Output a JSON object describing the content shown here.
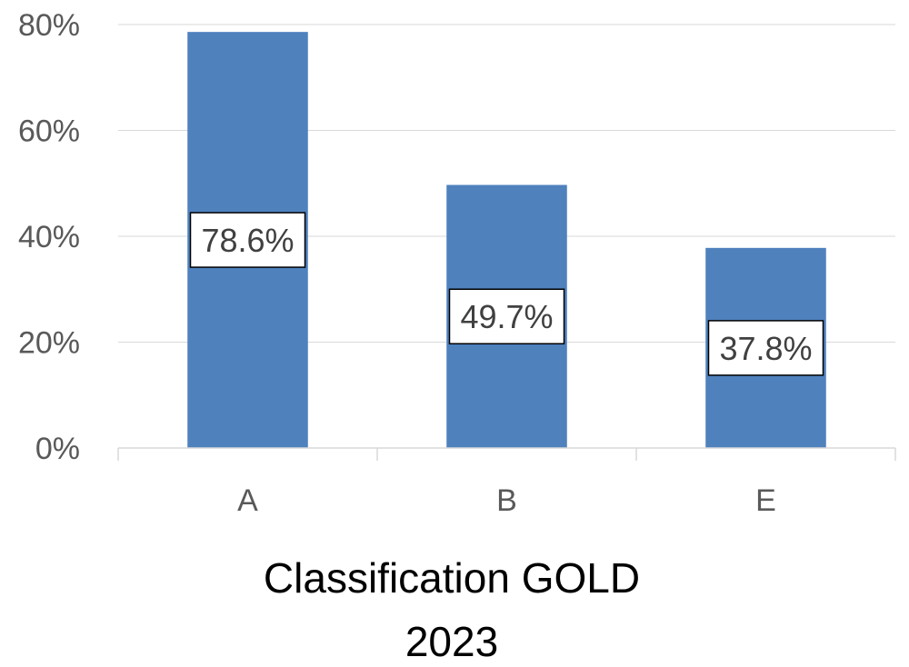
{
  "chart_data": {
    "type": "bar",
    "categories": [
      "A",
      "B",
      "E"
    ],
    "values": [
      78.6,
      49.7,
      37.8
    ],
    "data_labels": [
      "78.6%",
      "49.7%",
      "37.8%"
    ],
    "xlabel_lines": [
      "Classification GOLD",
      "2023"
    ],
    "ylabel": "",
    "ylim": [
      0,
      80
    ],
    "yticks": [
      0,
      20,
      40,
      60,
      80
    ],
    "ytick_labels": [
      "0%",
      "20%",
      "40%",
      "60%",
      "80%"
    ],
    "grid": true,
    "legend": "none",
    "bar_color": "#4f81bd"
  }
}
